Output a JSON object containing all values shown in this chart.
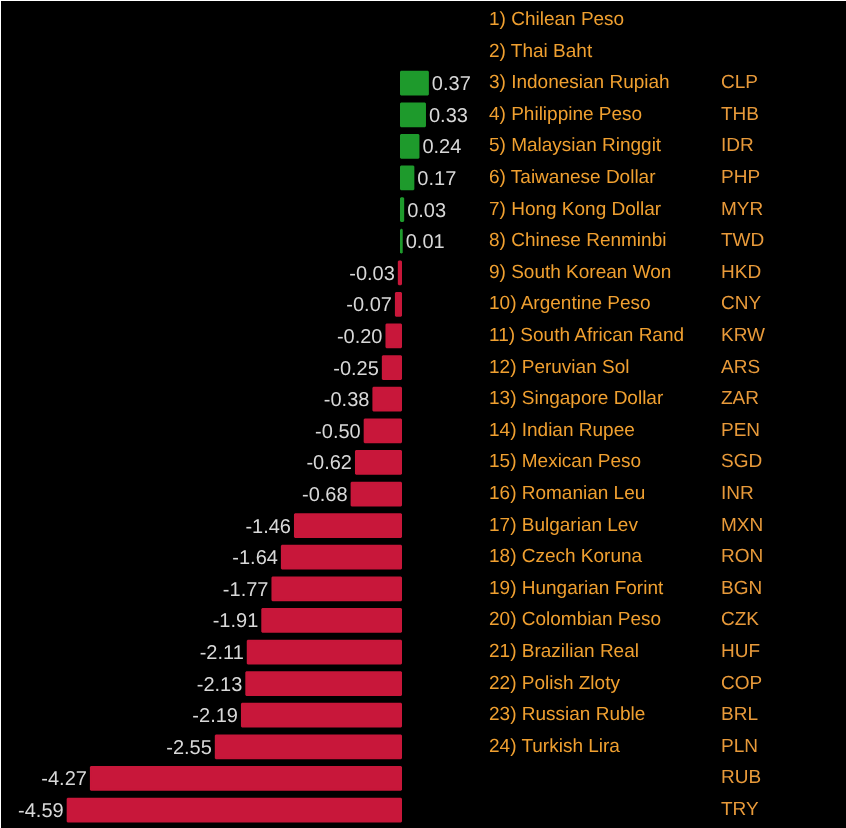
{
  "chart_data": {
    "type": "bar",
    "orientation": "horizontal",
    "value_labels": [
      "0.37",
      "0.33",
      "0.24",
      "0.17",
      "0.03",
      "0.01",
      "-0.03",
      "-0.07",
      "-0.20",
      "-0.25",
      "-0.38",
      "-0.50",
      "-0.62",
      "-0.68",
      "-1.46",
      "-1.64",
      "-1.77",
      "-1.91",
      "-2.11",
      "-2.13",
      "-2.19",
      "-2.55",
      "-4.27",
      "-4.59"
    ],
    "categories": [
      "CLP",
      "THB",
      "IDR",
      "PHP",
      "MYR",
      "TWD",
      "HKD",
      "CNY",
      "KRW",
      "ARS",
      "ZAR",
      "PEN",
      "SGD",
      "INR",
      "MXN",
      "RON",
      "BGN",
      "CZK",
      "HUF",
      "COP",
      "BRL",
      "PLN",
      "RUB",
      "TRY"
    ],
    "values": [
      0.37,
      0.33,
      0.24,
      0.17,
      0.03,
      0.01,
      -0.03,
      -0.07,
      -0.2,
      -0.25,
      -0.38,
      -0.5,
      -0.62,
      -0.68,
      -1.46,
      -1.64,
      -1.77,
      -1.91,
      -2.11,
      -2.13,
      -2.19,
      -2.55,
      -4.27,
      -4.59
    ],
    "colors": [
      "#1e9a2c",
      "#1e9a2c",
      "#1e9a2c",
      "#1e9a2c",
      "#1e9a2c",
      "#1e9a2c",
      "#c8173a",
      "#c8173a",
      "#c8173a",
      "#c8173a",
      "#c8173a",
      "#c8173a",
      "#c8173a",
      "#c8173a",
      "#c8173a",
      "#c8173a",
      "#c8173a",
      "#c8173a",
      "#c8173a",
      "#c8173a",
      "#c8173a",
      "#c8173a",
      "#c8173a",
      "#c8173a"
    ],
    "annotations": [
      "1) Chilean Peso",
      "2) Thai Baht",
      "3) Indonesian Rupiah",
      "4) Philippine Peso",
      "5) Malaysian Ringgit",
      "6) Taiwanese Dollar",
      "7) Hong Kong Dollar",
      "8) Chinese Renminbi",
      "9) South Korean Won",
      "10) Argentine Peso",
      "11) South African Rand",
      "12) Peruvian Sol",
      "13) Singapore Dollar",
      "14) Indian Rupee",
      "15) Mexican Peso",
      "16) Romanian Leu",
      "17) Bulgarian Lev",
      "18) Czech Koruna",
      "19) Hungarian Forint",
      "20) Colombian Peso",
      "21) Brazilian Real",
      "22) Polish Zloty",
      "23) Russian Ruble",
      "24) Turkish Lira"
    ]
  }
}
